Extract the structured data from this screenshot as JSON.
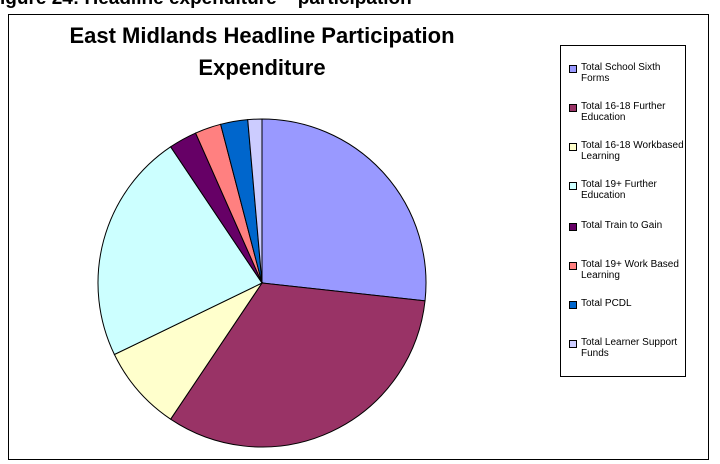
{
  "page": {
    "heading": "igure 24:  Headline expenditure – participation"
  },
  "chart_data": {
    "type": "pie",
    "title": "East Midlands Headline Participation Expenditure",
    "legend_position": "right",
    "categories": [
      "Total School Sixth Forms",
      "Total 16-18 Further Education",
      "Total 16-18 Workbased Learning",
      "Total 19+ Further Education",
      "Total Train to Gain",
      "Total 19+ Work Based Learning",
      "Total PCDL",
      "Total Learner Support Funds"
    ],
    "values": [
      27,
      33,
      8.5,
      23,
      2.8,
      2.6,
      2.7,
      1.4
    ],
    "colors": [
      "#9999FF",
      "#993366",
      "#FFFFCC",
      "#CCFFFF",
      "#660066",
      "#FF8080",
      "#0066CC",
      "#CCCCFF"
    ]
  }
}
